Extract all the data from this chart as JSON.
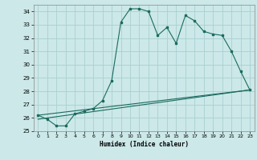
{
  "title": "",
  "xlabel": "Humidex (Indice chaleur)",
  "xlim": [
    -0.5,
    23.5
  ],
  "ylim": [
    25,
    34.5
  ],
  "yticks": [
    25,
    26,
    27,
    28,
    29,
    30,
    31,
    32,
    33,
    34
  ],
  "xticks": [
    0,
    1,
    2,
    3,
    4,
    5,
    6,
    7,
    8,
    9,
    10,
    11,
    12,
    13,
    14,
    15,
    16,
    17,
    18,
    19,
    20,
    21,
    22,
    23
  ],
  "background_color": "#cce8e8",
  "grid_color": "#aacfcf",
  "line_color": "#1a6b5e",
  "series1_x": [
    0,
    1,
    2,
    3,
    4,
    5,
    6,
    7,
    8,
    9,
    10,
    11,
    12,
    13,
    14,
    15,
    16,
    17,
    18,
    19,
    20,
    21,
    22,
    23
  ],
  "series1_y": [
    26.2,
    25.9,
    25.4,
    25.4,
    26.3,
    26.5,
    26.7,
    27.3,
    28.8,
    33.2,
    34.2,
    34.2,
    34.0,
    32.2,
    32.8,
    31.6,
    33.7,
    33.3,
    32.5,
    32.3,
    32.2,
    31.0,
    29.5,
    28.1
  ],
  "series2_x": [
    0,
    23
  ],
  "series2_y": [
    26.2,
    28.1
  ],
  "series3_x": [
    0,
    23
  ],
  "series3_y": [
    25.9,
    28.1
  ]
}
